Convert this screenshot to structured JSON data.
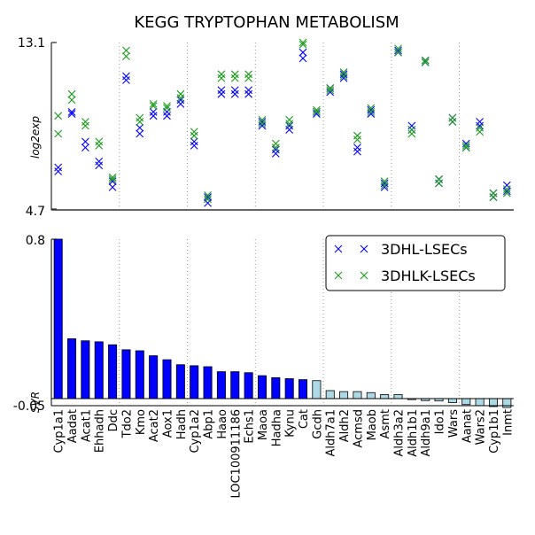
{
  "chart_data": [
    {
      "type": "scatter",
      "title": "KEGG TRYPTOPHAN METABOLISM",
      "ylabel": "log2exp",
      "ylim": [
        4.7,
        13.1
      ],
      "ytick_labels": [
        "13.1",
        "4.7"
      ],
      "grid": "vertical dotted separators",
      "legend": "none",
      "genes": [
        "Cyp1a1",
        "Aadat",
        "Acat1",
        "Ehhadh",
        "Ddc",
        "Tdo2",
        "Kmo",
        "Acat2",
        "Aox1",
        "Hadh",
        "Cyp1a2",
        "Abp1",
        "Haao",
        "LOC100911186",
        "Echs1",
        "Maoa",
        "Hadha",
        "Kynu",
        "Cat",
        "Gcdh",
        "Aldh7a1",
        "Aldh2",
        "Acmsd",
        "Maob",
        "Asmt",
        "Aldh3a2",
        "Aldh1b1",
        "Aldh9a1",
        "Ido1",
        "Wars",
        "Aanat",
        "Wars2",
        "Cyp1b1",
        "Inmt"
      ],
      "series": [
        {
          "name": "3DHL-LSECs",
          "color": "#0000ff",
          "values": [
            [
              6.6,
              6.8
            ],
            [
              9.5,
              9.6
            ],
            [
              7.8,
              8.1
            ],
            [
              6.9,
              7.1
            ],
            [
              5.8,
              6.1
            ],
            [
              11.2,
              11.4
            ],
            [
              8.5,
              8.8
            ],
            [
              9.4,
              9.6
            ],
            [
              9.4,
              9.6
            ],
            [
              10.0,
              10.2
            ],
            [
              7.9,
              8.1
            ],
            [
              5.0,
              5.3
            ],
            [
              10.5,
              10.7
            ],
            [
              10.5,
              10.7
            ],
            [
              10.5,
              10.7
            ],
            [
              8.9,
              9.1
            ],
            [
              7.5,
              7.7
            ],
            [
              8.7,
              8.9
            ],
            [
              12.3,
              12.6
            ],
            [
              9.5,
              9.6
            ],
            [
              10.6,
              10.8
            ],
            [
              11.3,
              11.5
            ],
            [
              7.6,
              7.8
            ],
            [
              9.5,
              9.7
            ],
            [
              5.8,
              6.0
            ],
            [
              12.6,
              12.7
            ],
            [
              8.7,
              8.9
            ],
            [
              12.1,
              12.2
            ],
            [
              6.0,
              6.2
            ],
            [
              9.1,
              9.3
            ],
            [
              7.8,
              8.0
            ],
            [
              8.9,
              9.1
            ],
            [
              5.3,
              5.5
            ],
            [
              5.6,
              5.9
            ]
          ]
        },
        {
          "name": "3DHLK-LSECs",
          "color": "#1a9a1a",
          "values": [
            [
              8.5,
              9.4
            ],
            [
              10.2,
              10.5
            ],
            [
              8.9,
              9.1
            ],
            [
              7.9,
              8.1
            ],
            [
              6.2,
              6.3
            ],
            [
              12.4,
              12.7
            ],
            [
              9.1,
              9.3
            ],
            [
              9.9,
              10.0
            ],
            [
              9.8,
              9.9
            ],
            [
              10.3,
              10.5
            ],
            [
              8.4,
              8.6
            ],
            [
              5.2,
              5.4
            ],
            [
              11.3,
              11.5
            ],
            [
              11.3,
              11.5
            ],
            [
              11.3,
              11.5
            ],
            [
              9.0,
              9.2
            ],
            [
              7.8,
              8.0
            ],
            [
              9.0,
              9.2
            ],
            [
              13.0,
              13.1
            ],
            [
              9.6,
              9.7
            ],
            [
              10.7,
              10.8
            ],
            [
              11.4,
              11.6
            ],
            [
              8.2,
              8.4
            ],
            [
              9.6,
              9.8
            ],
            [
              5.9,
              6.1
            ],
            [
              12.6,
              12.8
            ],
            [
              8.5,
              8.7
            ],
            [
              12.1,
              12.2
            ],
            [
              6.0,
              6.2
            ],
            [
              9.1,
              9.3
            ],
            [
              7.8,
              7.9
            ],
            [
              8.6,
              8.8
            ],
            [
              5.3,
              5.5
            ],
            [
              5.5,
              5.7
            ]
          ]
        }
      ]
    },
    {
      "type": "bar",
      "ylabel": "SVR",
      "ylim": [
        -0.05,
        0.8
      ],
      "ytick_labels": [
        "0.8",
        "-0.05"
      ],
      "categories": [
        "Cyp1a1",
        "Aadat",
        "Acat1",
        "Ehhadh",
        "Ddc",
        "Tdo2",
        "Kmo",
        "Acat2",
        "Aox1",
        "Hadh",
        "Cyp1a2",
        "Abp1",
        "Haao",
        "LOC100911186",
        "Echs1",
        "Maoa",
        "Hadha",
        "Kynu",
        "Cat",
        "Gcdh",
        "Aldh7a1",
        "Aldh2",
        "Acmsd",
        "Maob",
        "Asmt",
        "Aldh3a2",
        "Aldh1b1",
        "Aldh9a1",
        "Ido1",
        "Wars",
        "Aanat",
        "Wars2",
        "Cyp1b1",
        "Inmt"
      ],
      "values": [
        0.8,
        0.3,
        0.29,
        0.285,
        0.27,
        0.245,
        0.24,
        0.215,
        0.195,
        0.17,
        0.165,
        0.16,
        0.135,
        0.135,
        0.13,
        0.115,
        0.105,
        0.1,
        0.095,
        0.09,
        0.04,
        0.035,
        0.035,
        0.03,
        0.02,
        0.02,
        -0.005,
        -0.01,
        -0.012,
        -0.02,
        -0.03,
        -0.035,
        -0.04,
        -0.045
      ],
      "colors": {
        "positive_strong": "#0000ff",
        "positive_weak": "#add8e6",
        "negative": "#add8e6"
      },
      "strong_count": 19,
      "legend": "top-right",
      "legend_entries": [
        "3DHL-LSECs",
        "3DHLK-LSECs"
      ]
    }
  ]
}
